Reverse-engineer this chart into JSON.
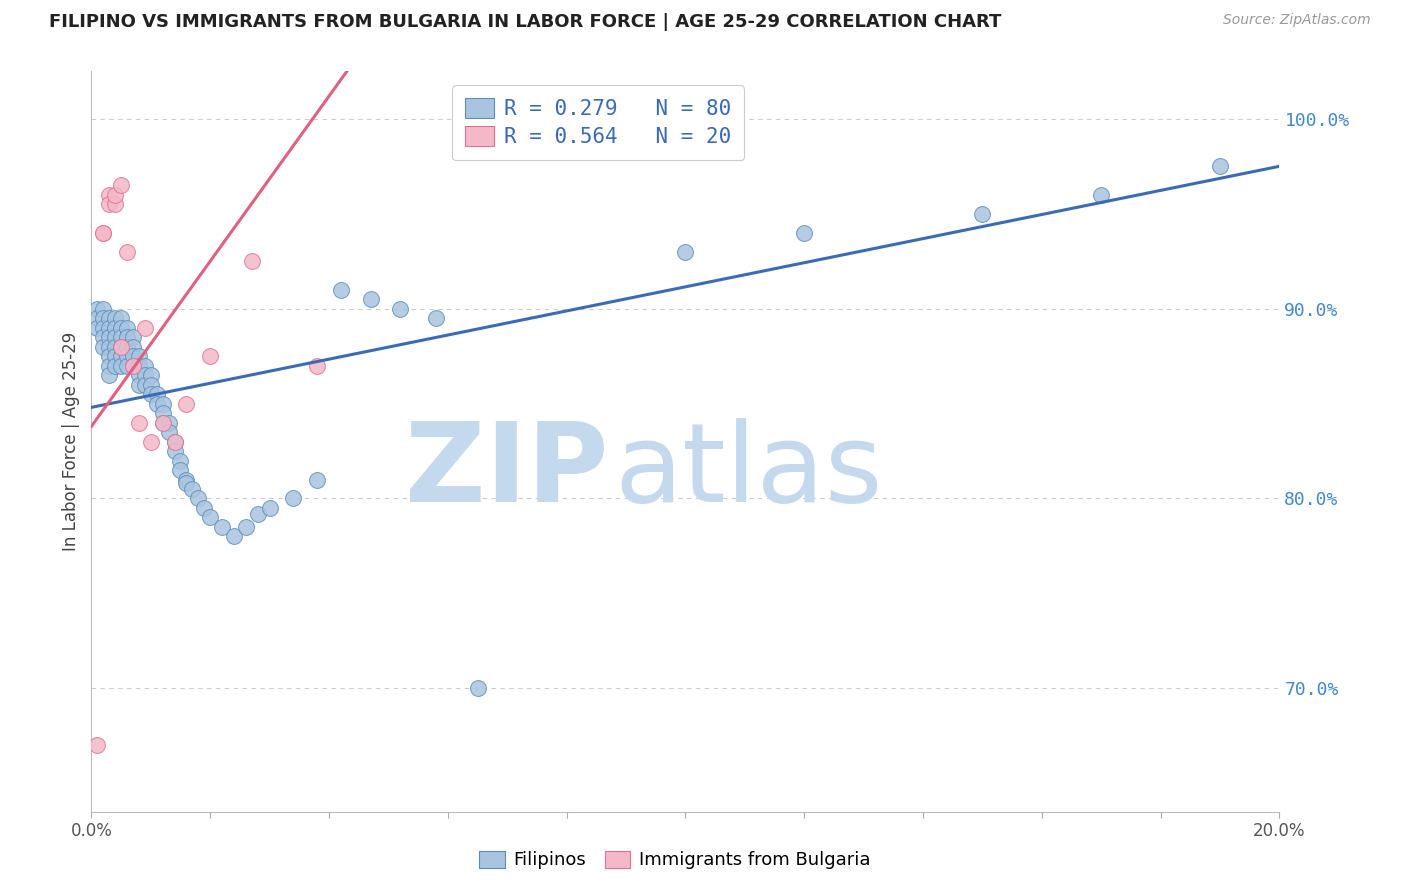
{
  "title": "FILIPINO VS IMMIGRANTS FROM BULGARIA IN LABOR FORCE | AGE 25-29 CORRELATION CHART",
  "source": "Source: ZipAtlas.com",
  "ylabel": "In Labor Force | Age 25-29",
  "xlim": [
    0.0,
    0.2
  ],
  "ylim": [
    0.635,
    1.025
  ],
  "xticks": [
    0.0,
    0.02,
    0.04,
    0.06,
    0.08,
    0.1,
    0.12,
    0.14,
    0.16,
    0.18,
    0.2
  ],
  "xticklabels": [
    "0.0%",
    "",
    "",
    "",
    "",
    "",
    "",
    "",
    "",
    "",
    "20.0%"
  ],
  "yticks_right": [
    0.7,
    0.8,
    0.9,
    1.0
  ],
  "ytick_labels_right": [
    "70.0%",
    "80.0%",
    "90.0%",
    "100.0%"
  ],
  "blue_color": "#A8C4E0",
  "blue_edge_color": "#5B8DB8",
  "pink_color": "#F4B8C8",
  "pink_edge_color": "#E07090",
  "line_blue": "#3B6BB5",
  "line_pink": "#E06080",
  "watermark_zip": "ZIP",
  "watermark_atlas": "atlas",
  "watermark_color": "#C5D9EE",
  "label1": "Filipinos",
  "label2": "Immigrants from Bulgaria",
  "background_color": "#FFFFFF",
  "grid_color": "#CCCCCC",
  "title_color": "#222222",
  "right_tick_color": "#4488CC",
  "blue_line_x": [
    0.0,
    0.2
  ],
  "blue_line_y": [
    0.848,
    0.975
  ],
  "pink_line_x": [
    0.0,
    0.043
  ],
  "pink_line_y": [
    0.838,
    1.025
  ],
  "blue_scatter_x": [
    0.001,
    0.001,
    0.001,
    0.002,
    0.002,
    0.002,
    0.002,
    0.002,
    0.003,
    0.003,
    0.003,
    0.003,
    0.003,
    0.003,
    0.003,
    0.004,
    0.004,
    0.004,
    0.004,
    0.004,
    0.004,
    0.005,
    0.005,
    0.005,
    0.005,
    0.005,
    0.005,
    0.006,
    0.006,
    0.006,
    0.006,
    0.006,
    0.007,
    0.007,
    0.007,
    0.007,
    0.008,
    0.008,
    0.008,
    0.008,
    0.009,
    0.009,
    0.009,
    0.01,
    0.01,
    0.01,
    0.011,
    0.011,
    0.012,
    0.012,
    0.012,
    0.013,
    0.013,
    0.014,
    0.014,
    0.015,
    0.015,
    0.016,
    0.016,
    0.017,
    0.018,
    0.019,
    0.02,
    0.022,
    0.024,
    0.026,
    0.028,
    0.03,
    0.034,
    0.038,
    0.042,
    0.047,
    0.052,
    0.058,
    0.065,
    0.1,
    0.12,
    0.15,
    0.17,
    0.19
  ],
  "blue_scatter_y": [
    0.9,
    0.895,
    0.89,
    0.9,
    0.895,
    0.89,
    0.885,
    0.88,
    0.895,
    0.89,
    0.885,
    0.88,
    0.875,
    0.87,
    0.865,
    0.895,
    0.89,
    0.885,
    0.88,
    0.875,
    0.87,
    0.895,
    0.89,
    0.885,
    0.88,
    0.875,
    0.87,
    0.89,
    0.885,
    0.88,
    0.875,
    0.87,
    0.885,
    0.88,
    0.875,
    0.87,
    0.875,
    0.87,
    0.865,
    0.86,
    0.87,
    0.865,
    0.86,
    0.865,
    0.86,
    0.855,
    0.855,
    0.85,
    0.85,
    0.845,
    0.84,
    0.84,
    0.835,
    0.83,
    0.825,
    0.82,
    0.815,
    0.81,
    0.808,
    0.805,
    0.8,
    0.795,
    0.79,
    0.785,
    0.78,
    0.785,
    0.792,
    0.795,
    0.8,
    0.81,
    0.91,
    0.905,
    0.9,
    0.895,
    0.7,
    0.93,
    0.94,
    0.95,
    0.96,
    0.975
  ],
  "pink_scatter_x": [
    0.001,
    0.002,
    0.002,
    0.003,
    0.003,
    0.004,
    0.004,
    0.005,
    0.005,
    0.006,
    0.007,
    0.008,
    0.009,
    0.01,
    0.012,
    0.014,
    0.016,
    0.02,
    0.027,
    0.038
  ],
  "pink_scatter_y": [
    0.67,
    0.94,
    0.94,
    0.96,
    0.955,
    0.955,
    0.96,
    0.965,
    0.88,
    0.93,
    0.87,
    0.84,
    0.89,
    0.83,
    0.84,
    0.83,
    0.85,
    0.875,
    0.925,
    0.87
  ]
}
